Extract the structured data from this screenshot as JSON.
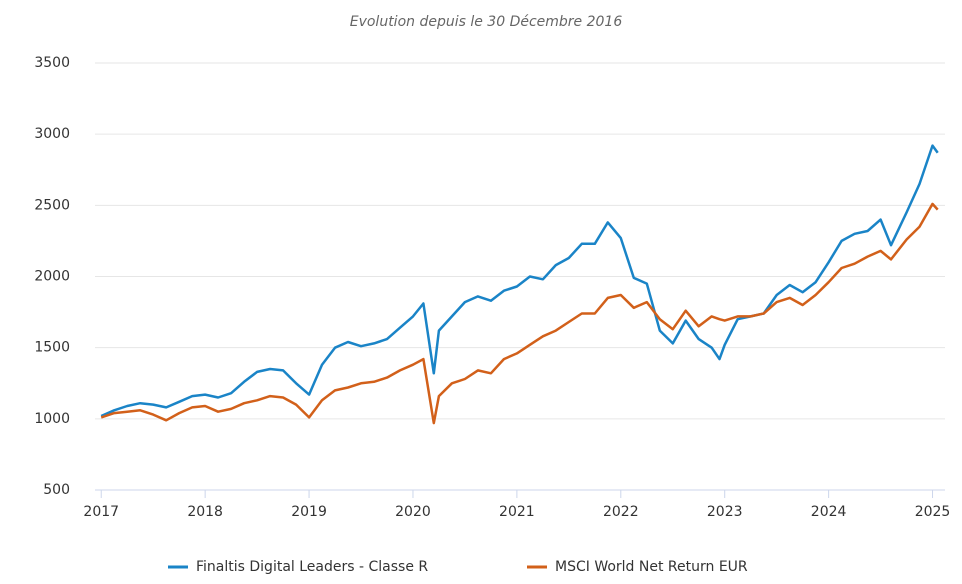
{
  "chart_data": {
    "type": "line",
    "title": "Evolution depuis le 30 Décembre 2016",
    "x": [
      2017.0,
      2017.125,
      2017.25,
      2017.375,
      2017.5,
      2017.625,
      2017.75,
      2017.875,
      2018.0,
      2018.125,
      2018.25,
      2018.375,
      2018.5,
      2018.625,
      2018.75,
      2018.875,
      2019.0,
      2019.125,
      2019.25,
      2019.375,
      2019.5,
      2019.625,
      2019.75,
      2019.875,
      2020.0,
      2020.1,
      2020.2,
      2020.25,
      2020.375,
      2020.5,
      2020.625,
      2020.75,
      2020.875,
      2021.0,
      2021.125,
      2021.25,
      2021.375,
      2021.5,
      2021.625,
      2021.75,
      2021.875,
      2022.0,
      2022.125,
      2022.25,
      2022.375,
      2022.5,
      2022.625,
      2022.75,
      2022.875,
      2022.95,
      2023.0,
      2023.125,
      2023.25,
      2023.375,
      2023.5,
      2023.625,
      2023.75,
      2023.875,
      2024.0,
      2024.125,
      2024.25,
      2024.375,
      2024.5,
      2024.6,
      2024.75,
      2024.875,
      2025.0,
      2025.05
    ],
    "series": [
      {
        "name": "Finaltis Digital Leaders - Classe R",
        "color": "#1a84c7",
        "values": [
          1020,
          1060,
          1090,
          1110,
          1100,
          1080,
          1120,
          1160,
          1170,
          1150,
          1180,
          1260,
          1330,
          1350,
          1340,
          1250,
          1170,
          1380,
          1500,
          1540,
          1510,
          1530,
          1560,
          1640,
          1720,
          1810,
          1320,
          1620,
          1720,
          1820,
          1860,
          1830,
          1900,
          1930,
          2000,
          1980,
          2080,
          2130,
          2230,
          2230,
          2380,
          2270,
          1990,
          1950,
          1620,
          1530,
          1690,
          1560,
          1500,
          1420,
          1520,
          1700,
          1720,
          1740,
          1870,
          1940,
          1890,
          1960,
          2100,
          2250,
          2300,
          2320,
          2400,
          2220,
          2450,
          2650,
          2920,
          2870
        ]
      },
      {
        "name": "MSCI World Net Return EUR",
        "color": "#d2601a",
        "values": [
          1010,
          1040,
          1050,
          1060,
          1030,
          990,
          1040,
          1080,
          1090,
          1050,
          1070,
          1110,
          1130,
          1160,
          1150,
          1100,
          1010,
          1130,
          1200,
          1220,
          1250,
          1260,
          1290,
          1340,
          1380,
          1420,
          970,
          1160,
          1250,
          1280,
          1340,
          1320,
          1420,
          1460,
          1520,
          1580,
          1620,
          1680,
          1740,
          1740,
          1850,
          1870,
          1780,
          1820,
          1700,
          1630,
          1760,
          1650,
          1720,
          1700,
          1690,
          1720,
          1720,
          1740,
          1820,
          1850,
          1800,
          1870,
          1960,
          2060,
          2090,
          2140,
          2180,
          2120,
          2260,
          2350,
          2510,
          2470
        ]
      }
    ],
    "xlim": [
      2016.94,
      2025.12
    ],
    "xticks": [
      2017,
      2018,
      2019,
      2020,
      2021,
      2022,
      2023,
      2024,
      2025
    ],
    "ylim": [
      500,
      3500
    ],
    "yticks": [
      500,
      1000,
      1500,
      2000,
      2500,
      3000,
      3500
    ],
    "grid": true
  }
}
